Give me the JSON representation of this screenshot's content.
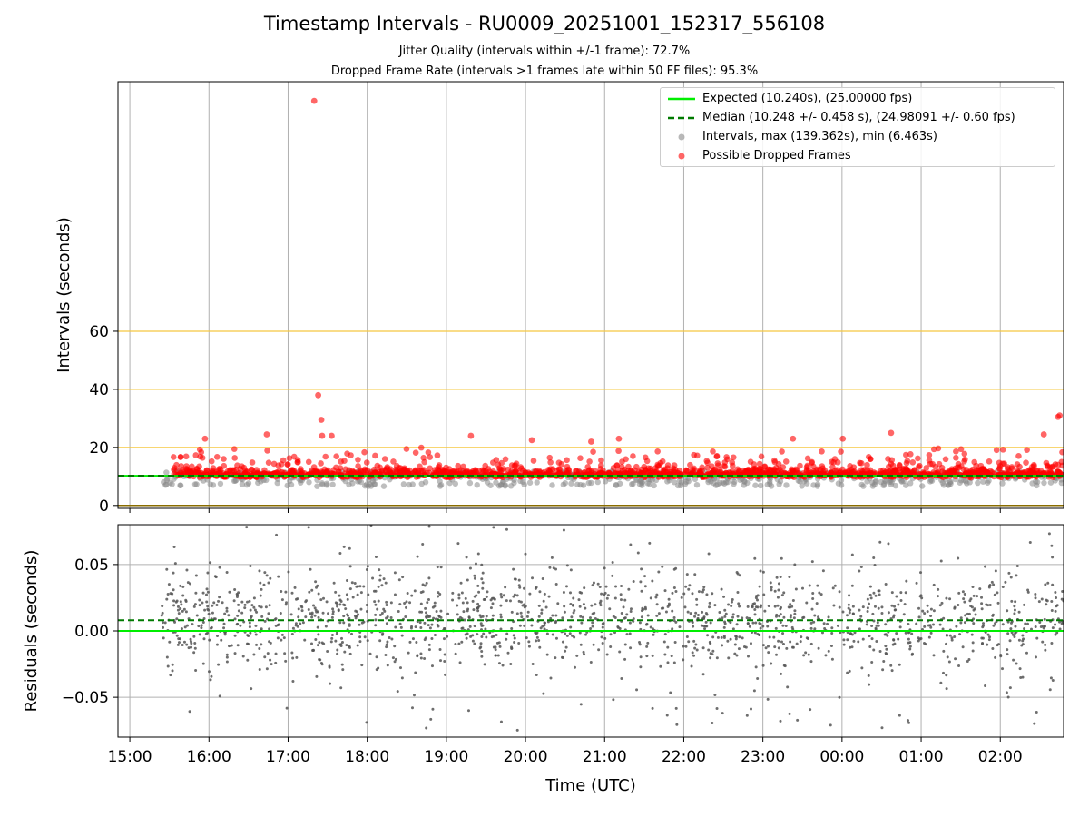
{
  "figure": {
    "title": "Timestamp Intervals - RU0009_20251001_152317_556108",
    "subtitle1": "Jitter Quality (intervals within +/-1 frame): 72.7%",
    "subtitle2": "Dropped Frame Rate (intervals >1 frames late within 50 FF files): 95.3%"
  },
  "colors": {
    "expected": "#00ee00",
    "median": "#007a00",
    "intervals": "#888888",
    "dropped": "#ff0000",
    "threshold": "#f5c842",
    "grid": "#b0b0b0",
    "residuals": "#555555"
  },
  "legend": {
    "expected": "Expected (10.240s), (25.00000 fps)",
    "median": "Median (10.248 +/- 0.458 s), (24.98091 +/- 0.60 fps)",
    "intervals": "Intervals, max (139.362s), min (6.463s)",
    "dropped": "Possible Dropped Frames"
  },
  "chart_data": [
    {
      "type": "scatter",
      "ylabel": "Intervals (seconds)",
      "x_unit": "hours since 15:00 UTC",
      "xlim": [
        -0.15,
        11.8
      ],
      "ylim": [
        -1,
        146
      ],
      "yticks": [
        0,
        20,
        40,
        60
      ],
      "threshold_lines": [
        20,
        40,
        60
      ],
      "expected": 10.24,
      "median": 10.248,
      "median_std": 0.458,
      "expected_fps": 25.0,
      "median_fps": 24.98091,
      "fps_std": 0.6,
      "max_interval": 139.362,
      "min_interval": 6.463,
      "grid": true,
      "legend_position": "upper right",
      "series": [
        {
          "name": "Intervals, max (139.362s), min (6.463s)",
          "start_hour": 0.4,
          "end_hour": 11.8,
          "typical_range": [
            6.5,
            12
          ]
        },
        {
          "name": "Possible Dropped Frames",
          "highlighted_points": [
            {
              "x": 2.33,
              "y": 139.4
            },
            {
              "x": 2.38,
              "y": 38.0
            },
            {
              "x": 2.42,
              "y": 29.5
            },
            {
              "x": 2.43,
              "y": 24.0
            },
            {
              "x": 2.55,
              "y": 24.0
            },
            {
              "x": 1.73,
              "y": 24.5
            },
            {
              "x": 0.95,
              "y": 23.0
            },
            {
              "x": 4.31,
              "y": 24.0
            },
            {
              "x": 5.08,
              "y": 22.5
            },
            {
              "x": 5.83,
              "y": 22.0
            },
            {
              "x": 6.18,
              "y": 23.0
            },
            {
              "x": 8.38,
              "y": 23.0
            },
            {
              "x": 9.01,
              "y": 23.0
            },
            {
              "x": 9.62,
              "y": 25.0
            },
            {
              "x": 11.75,
              "y": 31.0
            },
            {
              "x": 11.73,
              "y": 30.5
            },
            {
              "x": 11.55,
              "y": 24.5
            }
          ]
        }
      ],
      "xtick_labels": [
        "15:00",
        "16:00",
        "17:00",
        "18:00",
        "19:00",
        "20:00",
        "21:00",
        "22:00",
        "23:00",
        "00:00",
        "01:00",
        "02:00"
      ]
    },
    {
      "type": "scatter",
      "xlabel": "Time (UTC)",
      "ylabel": "Residuals (seconds)",
      "x_unit": "hours since 15:00 UTC",
      "xlim": [
        -0.15,
        11.8
      ],
      "ylim": [
        -0.08,
        0.08
      ],
      "yticks": [
        -0.05,
        0.0,
        0.05
      ],
      "ytick_labels": [
        "−0.05",
        "0.00",
        "0.05"
      ],
      "expected_residual": 0.0,
      "median_residual": 0.008,
      "grid": true,
      "series": [
        {
          "name": "Residuals",
          "start_hour": 0.4,
          "end_hour": 11.8,
          "typical_range": [
            -0.08,
            0.08
          ]
        }
      ],
      "xtick_labels": [
        "15:00",
        "16:00",
        "17:00",
        "18:00",
        "19:00",
        "20:00",
        "21:00",
        "22:00",
        "23:00",
        "00:00",
        "01:00",
        "02:00"
      ]
    }
  ]
}
